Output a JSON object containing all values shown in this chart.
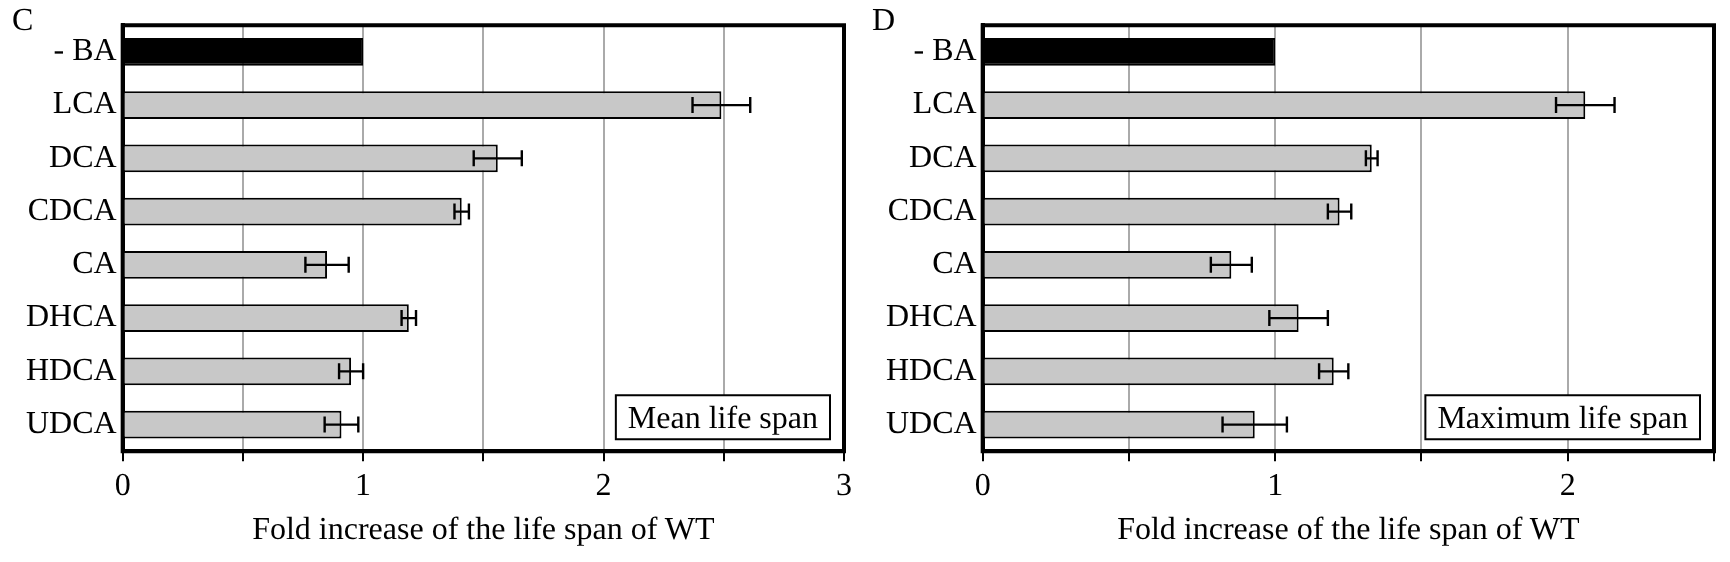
{
  "chart_data": [
    {
      "type": "bar",
      "orientation": "horizontal",
      "title": "C",
      "xlabel": "Fold increase of the life span of WT",
      "annotations": [
        "Mean life span"
      ],
      "categories": [
        "- BA",
        "LCA",
        "DCA",
        "CDCA",
        "CA",
        "DHCA",
        "HDCA",
        "UDCA"
      ],
      "values": [
        1,
        2.49,
        1.56,
        1.41,
        0.85,
        1.19,
        0.95,
        0.91
      ],
      "errors": [
        null,
        0.12,
        0.1,
        0.03,
        0.09,
        0.03,
        0.05,
        0.07
      ],
      "colors": [
        "#000000",
        "#c8c8c8",
        "#c8c8c8",
        "#c8c8c8",
        "#c8c8c8",
        "#c8c8c8",
        "#c8c8c8",
        "#c8c8c8"
      ],
      "xlim": [
        0,
        3
      ],
      "xticks": [
        0,
        {
          "value": 0.5,
          "label": null
        },
        1,
        {
          "value": 1.5,
          "label": null
        },
        2,
        {
          "value": 2.5,
          "label": null
        },
        3
      ],
      "grid": "x"
    },
    {
      "type": "bar",
      "orientation": "horizontal",
      "title": "D",
      "xlabel": "Fold increase of the life span of WT",
      "annotations": [
        "Maximum life span"
      ],
      "categories": [
        "- BA",
        "LCA",
        "DCA",
        "CDCA",
        "CA",
        "DHCA",
        "HDCA",
        "UDCA"
      ],
      "values": [
        1,
        2.06,
        1.33,
        1.22,
        0.85,
        1.08,
        1.2,
        0.93
      ],
      "errors": [
        null,
        0.1,
        0.02,
        0.04,
        0.07,
        0.1,
        0.05,
        0.11
      ],
      "colors": [
        "#000000",
        "#c8c8c8",
        "#c8c8c8",
        "#c8c8c8",
        "#c8c8c8",
        "#c8c8c8",
        "#c8c8c8",
        "#c8c8c8"
      ],
      "xlim": [
        0,
        2.5
      ],
      "xticks": [
        0,
        {
          "value": 0.5,
          "label": null
        },
        1,
        {
          "value": 1.5,
          "label": null
        },
        2,
        {
          "value": 2.5,
          "label": null
        }
      ],
      "grid": "x"
    }
  ]
}
